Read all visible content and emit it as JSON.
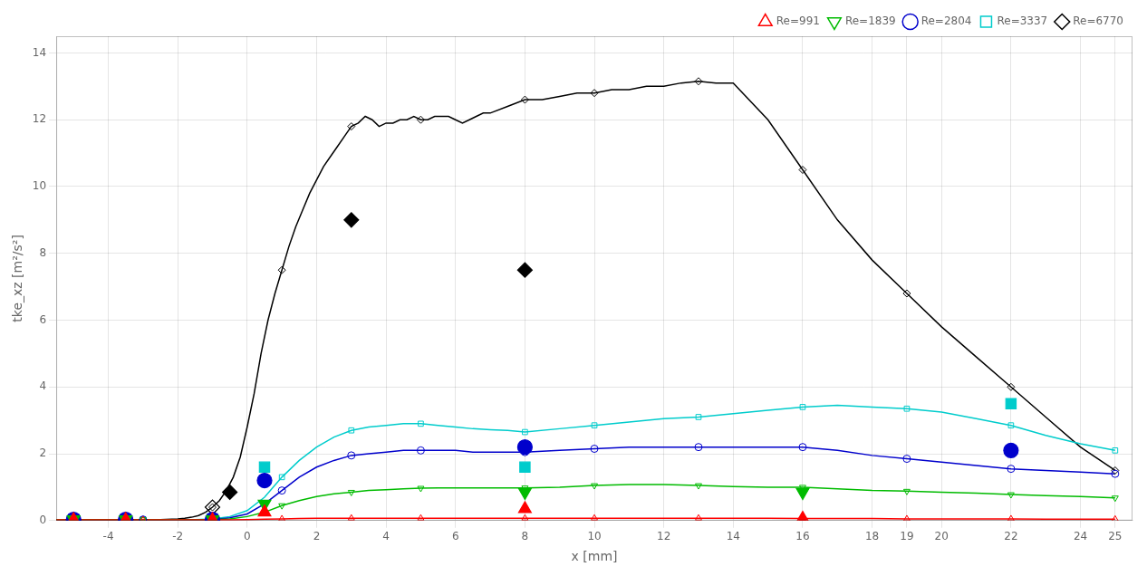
{
  "chart_data": {
    "type": "line",
    "xlabel": "x [mm]",
    "ylabel": "tke_xz [m²/s²]",
    "xlim": [
      -5.5,
      25.5
    ],
    "ylim": [
      0,
      14.5
    ],
    "xticks": [
      -4,
      -2,
      0,
      2,
      4,
      6,
      8,
      10,
      12,
      14,
      16,
      18,
      19,
      20,
      22,
      24,
      25
    ],
    "yticks": [
      0,
      2,
      4,
      6,
      8,
      10,
      12,
      14
    ],
    "grid": true,
    "legend": "upper right",
    "series": [
      {
        "name": "Re=991",
        "color": "#ff0000",
        "marker": "triangle-up",
        "x": [
          -5.5,
          -5,
          -4.5,
          -4,
          -3.5,
          -3,
          -2.5,
          -2,
          -1.5,
          -1,
          -0.5,
          0,
          0.5,
          1,
          1.5,
          2,
          2.5,
          3,
          3.5,
          4,
          4.5,
          5,
          5.5,
          6,
          6.5,
          7,
          7.5,
          8,
          9,
          10,
          11,
          12,
          13,
          14,
          15,
          16,
          17,
          18,
          19,
          20,
          21,
          22,
          23,
          24,
          25
        ],
        "values": [
          0.02,
          0.02,
          0.02,
          0.02,
          0.02,
          0.02,
          0.02,
          0.02,
          0.02,
          0.02,
          0.02,
          0.03,
          0.04,
          0.05,
          0.06,
          0.07,
          0.07,
          0.07,
          0.07,
          0.07,
          0.07,
          0.07,
          0.07,
          0.07,
          0.07,
          0.07,
          0.07,
          0.07,
          0.07,
          0.07,
          0.07,
          0.07,
          0.07,
          0.07,
          0.07,
          0.06,
          0.06,
          0.06,
          0.05,
          0.05,
          0.05,
          0.05,
          0.04,
          0.04,
          0.04
        ],
        "marker_x": [
          -5,
          -3,
          -1,
          1,
          3,
          5,
          8,
          10,
          13,
          16,
          19,
          22,
          25
        ],
        "marker_values": [
          0.02,
          0.02,
          0.02,
          0.05,
          0.07,
          0.07,
          0.07,
          0.07,
          0.07,
          0.06,
          0.05,
          0.05,
          0.04
        ],
        "piv_x": [
          -5.0,
          -3.5,
          -1.0,
          0.5,
          8.0,
          16.0
        ],
        "piv_values": [
          0.02,
          0.02,
          0.02,
          0.25,
          0.35,
          0.06
        ],
        "piv_filled": [
          true,
          true,
          true,
          true,
          true,
          true
        ]
      },
      {
        "name": "Re=1839",
        "color": "#00bb00",
        "marker": "triangle-down",
        "x": [
          -5.5,
          -5,
          -4.5,
          -4,
          -3.5,
          -3,
          -2.5,
          -2,
          -1.5,
          -1,
          -0.5,
          0,
          0.5,
          1,
          1.5,
          2,
          2.5,
          3,
          3.5,
          4,
          4.5,
          5,
          5.5,
          6,
          6.5,
          7,
          7.5,
          8,
          9,
          10,
          11,
          12,
          13,
          14,
          15,
          16,
          17,
          18,
          19,
          20,
          21,
          22,
          23,
          24,
          25
        ],
        "values": [
          0.03,
          0.03,
          0.03,
          0.03,
          0.03,
          0.03,
          0.03,
          0.03,
          0.03,
          0.03,
          0.05,
          0.12,
          0.25,
          0.45,
          0.6,
          0.72,
          0.8,
          0.85,
          0.9,
          0.92,
          0.95,
          0.97,
          0.98,
          0.98,
          0.98,
          0.98,
          0.98,
          0.98,
          1.0,
          1.05,
          1.08,
          1.08,
          1.05,
          1.02,
          1.0,
          1.0,
          0.95,
          0.9,
          0.88,
          0.85,
          0.82,
          0.78,
          0.75,
          0.72,
          0.68
        ],
        "marker_x": [
          -5,
          -3,
          -1,
          1,
          3,
          5,
          8,
          10,
          13,
          16,
          19,
          22,
          25
        ],
        "marker_values": [
          0.03,
          0.03,
          0.03,
          0.45,
          0.85,
          0.97,
          0.98,
          1.05,
          1.05,
          1.0,
          0.88,
          0.78,
          0.68
        ],
        "piv_x": [
          -5.0,
          -3.5,
          -1.0,
          0.5,
          8.0,
          16.0
        ],
        "piv_values": [
          0.03,
          0.03,
          0.03,
          0.5,
          0.85,
          0.85
        ],
        "piv_filled": [
          true,
          true,
          true,
          true,
          true,
          true
        ]
      },
      {
        "name": "Re=2804",
        "color": "#0000cc",
        "marker": "circle",
        "x": [
          -5.5,
          -5,
          -4.5,
          -4,
          -3.5,
          -3,
          -2.5,
          -2,
          -1.5,
          -1,
          -0.5,
          0,
          0.5,
          1,
          1.5,
          2,
          2.5,
          3,
          3.5,
          4,
          4.5,
          5,
          5.5,
          6,
          6.5,
          7,
          7.5,
          8,
          9,
          10,
          11,
          12,
          13,
          14,
          15,
          16,
          17,
          18,
          19,
          20,
          21,
          22,
          23,
          24,
          25
        ],
        "values": [
          0.03,
          0.03,
          0.03,
          0.03,
          0.03,
          0.03,
          0.03,
          0.03,
          0.03,
          0.03,
          0.08,
          0.2,
          0.5,
          0.9,
          1.3,
          1.6,
          1.8,
          1.95,
          2.0,
          2.05,
          2.1,
          2.1,
          2.1,
          2.1,
          2.05,
          2.05,
          2.05,
          2.05,
          2.1,
          2.15,
          2.2,
          2.2,
          2.2,
          2.2,
          2.2,
          2.2,
          2.1,
          1.95,
          1.85,
          1.75,
          1.65,
          1.55,
          1.5,
          1.45,
          1.4
        ],
        "marker_x": [
          -5,
          -3,
          -1,
          1,
          3,
          5,
          8,
          10,
          13,
          16,
          19,
          22,
          25
        ],
        "marker_values": [
          0.03,
          0.03,
          0.03,
          0.9,
          1.95,
          2.1,
          2.05,
          2.15,
          2.2,
          2.2,
          1.85,
          1.55,
          1.4
        ],
        "piv_x": [
          -5.0,
          -3.5,
          -1.0,
          0.5,
          8.0,
          22.0
        ],
        "piv_values": [
          0.03,
          0.03,
          0.03,
          1.2,
          2.2,
          2.1
        ],
        "piv_filled": [
          true,
          true,
          true,
          true,
          true,
          true
        ]
      },
      {
        "name": "Re=3337",
        "color": "#00cccc",
        "marker": "square",
        "x": [
          -5.5,
          -5,
          -4.5,
          -4,
          -3.5,
          -3,
          -2.5,
          -2,
          -1.5,
          -1,
          -0.5,
          0,
          0.5,
          1,
          1.5,
          2,
          2.5,
          3,
          3.5,
          4,
          4.5,
          5,
          5.5,
          6,
          6.5,
          7,
          7.5,
          8,
          9,
          10,
          11,
          12,
          13,
          14,
          15,
          16,
          17,
          18,
          19,
          20,
          21,
          22,
          23,
          24,
          25
        ],
        "values": [
          0.03,
          0.03,
          0.03,
          0.03,
          0.03,
          0.03,
          0.03,
          0.03,
          0.03,
          0.05,
          0.12,
          0.3,
          0.7,
          1.3,
          1.8,
          2.2,
          2.5,
          2.7,
          2.8,
          2.85,
          2.9,
          2.9,
          2.85,
          2.8,
          2.75,
          2.72,
          2.7,
          2.65,
          2.75,
          2.85,
          2.95,
          3.05,
          3.1,
          3.2,
          3.3,
          3.4,
          3.45,
          3.4,
          3.35,
          3.25,
          3.05,
          2.85,
          2.55,
          2.3,
          2.1
        ],
        "marker_x": [
          -5,
          -3,
          -1,
          1,
          3,
          5,
          8,
          10,
          13,
          16,
          19,
          22,
          25
        ],
        "marker_values": [
          0.03,
          0.03,
          0.05,
          1.3,
          2.7,
          2.9,
          2.65,
          2.85,
          3.1,
          3.4,
          3.35,
          2.85,
          2.1
        ],
        "piv_x": [
          -5.0,
          -3.5,
          -1.0,
          0.5,
          8.0,
          22.0
        ],
        "piv_values": [
          0.03,
          0.03,
          0.05,
          1.6,
          1.6,
          3.5
        ],
        "piv_filled": [
          true,
          true,
          true,
          true,
          true,
          true
        ]
      },
      {
        "name": "Re=6770",
        "color": "#000000",
        "marker": "diamond",
        "x": [
          -5.5,
          -5.0,
          -4.5,
          -4.0,
          -3.5,
          -3.0,
          -2.5,
          -2.0,
          -1.8,
          -1.6,
          -1.4,
          -1.2,
          -1.0,
          -0.8,
          -0.6,
          -0.4,
          -0.2,
          0.0,
          0.2,
          0.4,
          0.6,
          0.8,
          1.0,
          1.2,
          1.4,
          1.6,
          1.8,
          2.0,
          2.2,
          2.4,
          2.6,
          2.8,
          3.0,
          3.2,
          3.4,
          3.6,
          3.8,
          4.0,
          4.2,
          4.4,
          4.6,
          4.8,
          5.0,
          5.2,
          5.4,
          5.6,
          5.8,
          6.0,
          6.2,
          6.4,
          6.6,
          6.8,
          7.0,
          7.5,
          8.0,
          8.5,
          9.0,
          9.5,
          10.0,
          10.5,
          11.0,
          11.5,
          12.0,
          12.5,
          13.0,
          13.5,
          14.0,
          15.0,
          16.0,
          17.0,
          18.0,
          19.0,
          20.0,
          21.0,
          22.0,
          23.0,
          24.0,
          25.0
        ],
        "values": [
          0.03,
          0.03,
          0.03,
          0.03,
          0.03,
          0.03,
          0.03,
          0.05,
          0.07,
          0.1,
          0.15,
          0.25,
          0.4,
          0.6,
          0.9,
          1.3,
          1.9,
          2.8,
          3.8,
          5.0,
          6.0,
          6.8,
          7.5,
          8.2,
          8.8,
          9.3,
          9.8,
          10.2,
          10.6,
          10.9,
          11.2,
          11.5,
          11.8,
          11.9,
          12.1,
          12.0,
          11.8,
          11.9,
          11.9,
          12.0,
          12.0,
          12.1,
          12.0,
          12.0,
          12.1,
          12.1,
          12.1,
          12.0,
          11.9,
          12.0,
          12.1,
          12.2,
          12.2,
          12.4,
          12.6,
          12.6,
          12.7,
          12.8,
          12.8,
          12.9,
          12.9,
          13.0,
          13.0,
          13.1,
          13.15,
          13.1,
          13.1,
          12.0,
          10.5,
          9.0,
          7.8,
          6.8,
          5.8,
          4.9,
          4.0,
          3.1,
          2.2,
          1.5
        ],
        "marker_x": [
          -5,
          -3,
          -1,
          1,
          3,
          5,
          8,
          10,
          13,
          16,
          19,
          22,
          25
        ],
        "marker_values": [
          0.03,
          0.03,
          0.4,
          7.5,
          11.8,
          12.0,
          12.6,
          12.8,
          13.15,
          10.5,
          6.8,
          4.0,
          1.5
        ],
        "piv_x": [
          -5.0,
          -3.5,
          -1.0,
          -0.5,
          3.0,
          8.0
        ],
        "piv_values": [
          0.03,
          0.03,
          0.4,
          0.85,
          9.0,
          7.5
        ],
        "piv_filled": [
          false,
          false,
          false,
          true,
          true,
          true
        ]
      }
    ]
  }
}
